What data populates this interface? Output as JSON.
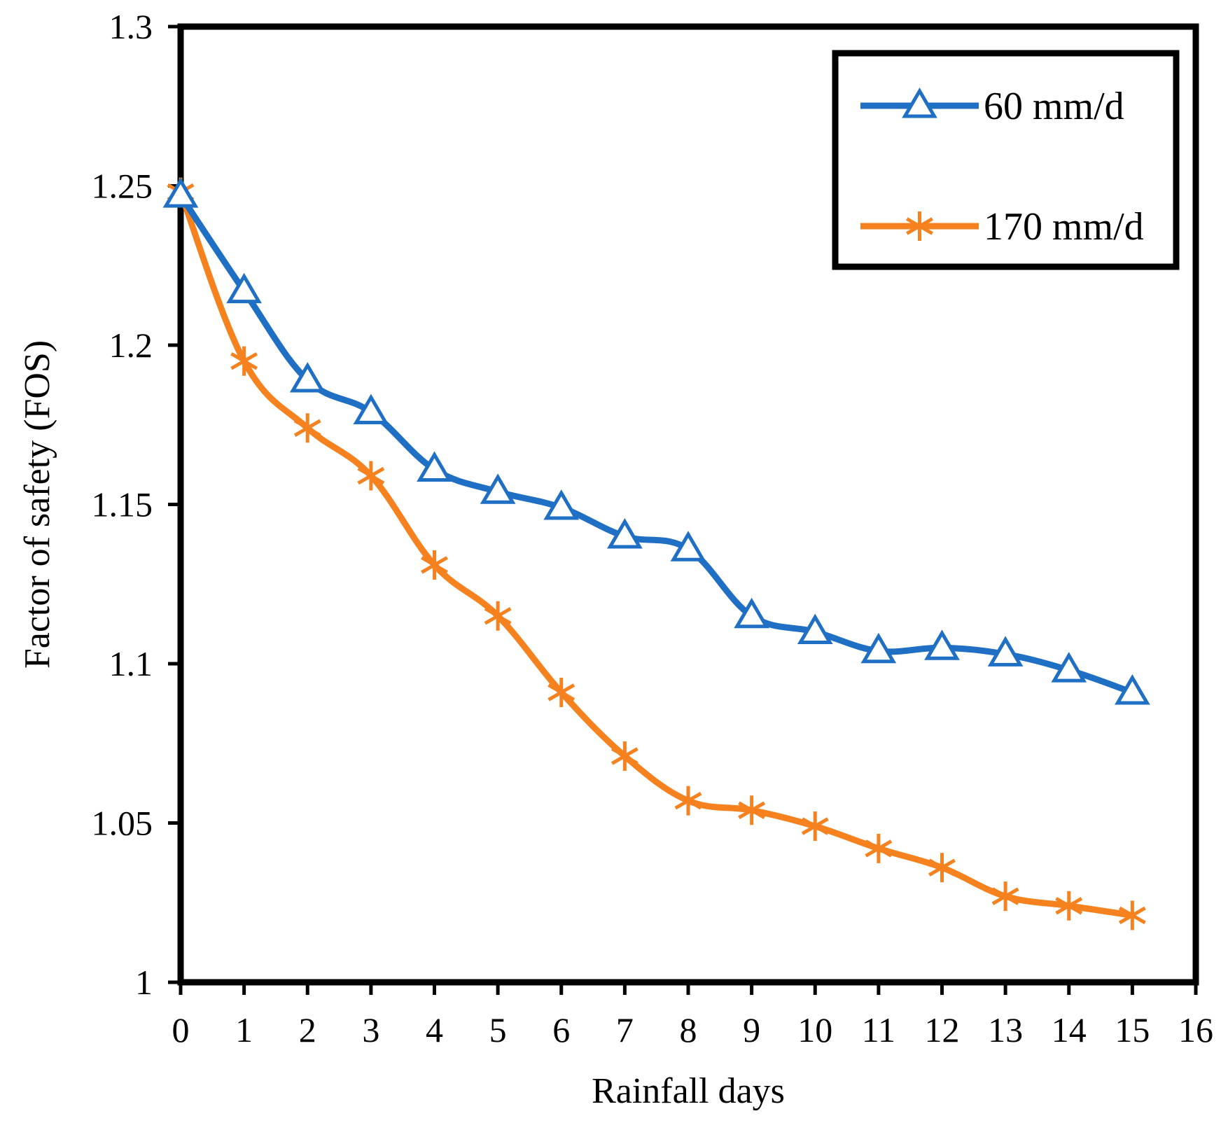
{
  "chart_data": {
    "type": "line",
    "title": "",
    "xlabel": "Rainfall days",
    "ylabel": "Factor of safety (FOS)",
    "xlim": [
      0,
      16
    ],
    "ylim": [
      1,
      1.3
    ],
    "x_ticks": [
      0,
      1,
      2,
      3,
      4,
      5,
      6,
      7,
      8,
      9,
      10,
      11,
      12,
      13,
      14,
      15,
      16
    ],
    "x_tick_labels": [
      "0",
      "1",
      "2",
      "3",
      "4",
      "5",
      "6",
      "7",
      "8",
      "9",
      "10",
      "11",
      "12",
      "13",
      "14",
      "15",
      "16"
    ],
    "y_ticks": [
      1,
      1.05,
      1.1,
      1.15,
      1.2,
      1.25,
      1.3
    ],
    "y_tick_labels": [
      "1",
      "1.05",
      "1.1",
      "1.15",
      "1.2",
      "1.25",
      "1.3"
    ],
    "grid": false,
    "legend_position": "top-right",
    "x": [
      0,
      1,
      2,
      3,
      4,
      5,
      6,
      7,
      8,
      9,
      10,
      11,
      12,
      13,
      14,
      15
    ],
    "series": [
      {
        "name": "60 mm/d",
        "color": "#1F6FC4",
        "marker": "triangle",
        "values": [
          1.247,
          1.217,
          1.189,
          1.179,
          1.161,
          1.154,
          1.149,
          1.14,
          1.136,
          1.115,
          1.11,
          1.104,
          1.105,
          1.103,
          1.098,
          1.091
        ]
      },
      {
        "name": "170 mm/d",
        "color": "#F5821F",
        "marker": "asterisk",
        "values": [
          1.248,
          1.195,
          1.174,
          1.159,
          1.131,
          1.115,
          1.091,
          1.071,
          1.057,
          1.054,
          1.049,
          1.042,
          1.036,
          1.027,
          1.024,
          1.021
        ]
      }
    ]
  }
}
